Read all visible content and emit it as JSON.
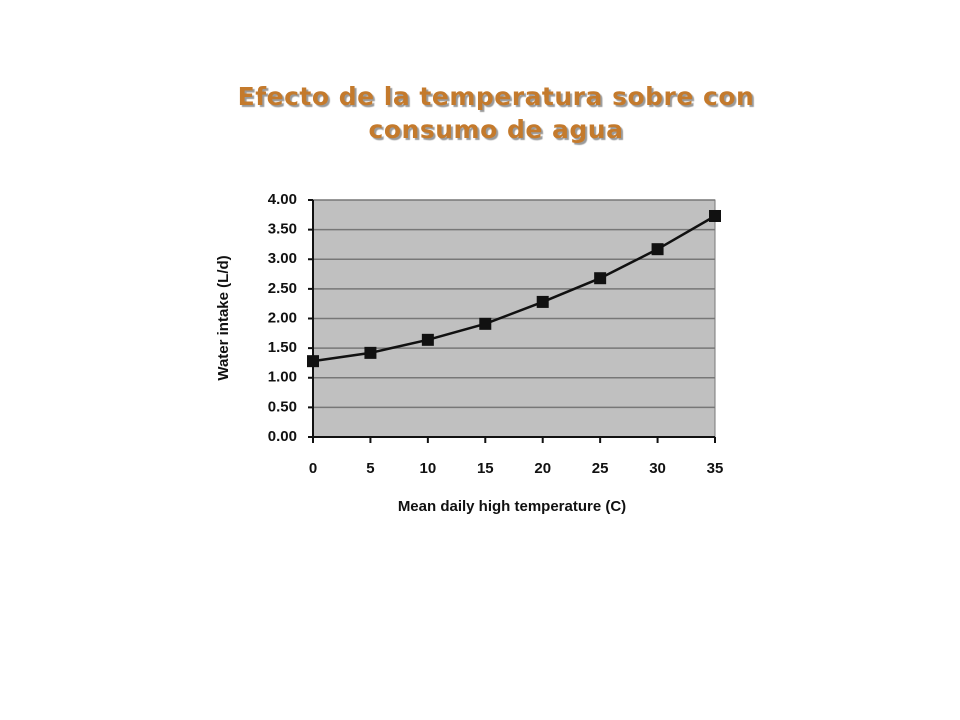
{
  "chart_data": {
    "type": "line",
    "title": "Efecto de la temperatura sobre con consumo de agua",
    "x_label": "Mean daily high temperature (C)",
    "y_label": "Water intake (L/d)",
    "x": [
      0,
      5,
      10,
      15,
      20,
      25,
      30,
      35
    ],
    "series": [
      {
        "name": "Water intake",
        "color": "#111111",
        "values": [
          1.28,
          1.42,
          1.64,
          1.91,
          2.28,
          2.68,
          3.17,
          3.73
        ]
      }
    ],
    "xlim": [
      0,
      35
    ],
    "xticks": [
      0,
      5,
      10,
      15,
      20,
      25,
      30,
      35
    ],
    "ylim": [
      0,
      4
    ],
    "yticks": [
      {
        "value": 0,
        "label": "0.00"
      },
      {
        "value": 0.5,
        "label": "0.50"
      },
      {
        "value": 1,
        "label": "1.00"
      },
      {
        "value": 1.5,
        "label": "1.50"
      },
      {
        "value": 2,
        "label": "2.00"
      },
      {
        "value": 2.5,
        "label": "2.50"
      },
      {
        "value": 3,
        "label": "3.00"
      },
      {
        "value": 3.5,
        "label": "3.50"
      },
      {
        "value": 4,
        "label": "4.00"
      }
    ],
    "grid": true,
    "plot_background": "#c0c0c0"
  }
}
